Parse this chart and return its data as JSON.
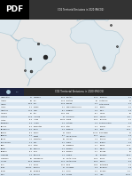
{
  "title": "CO2 Territorial Emissions in 2020 (MtCO2)",
  "map_bg": "#bdd9ea",
  "land_color": "#dde8ee",
  "land_edge": "#aec8d5",
  "header_bg": "#2a2a2a",
  "header_text": "#ffffff",
  "table_bg1": "#d6e4f0",
  "table_bg2": "#eef4f9",
  "pdf_label": "PDF",
  "map_xlim": [
    -100,
    55
  ],
  "map_ylim": [
    -58,
    65
  ],
  "dots": [
    {
      "lon": -47,
      "lat": -15,
      "size": 12,
      "color": "#111111"
    },
    {
      "lon": -64,
      "lat": -34,
      "size": 4,
      "color": "#444444"
    },
    {
      "lon": -65,
      "lat": -17,
      "size": 3,
      "color": "#555555"
    },
    {
      "lon": -55,
      "lat": 4,
      "size": 3,
      "color": "#555555"
    },
    {
      "lon": -71,
      "lat": -33,
      "size": 2,
      "color": "#666666"
    },
    {
      "lon": 22,
      "lat": -30,
      "size": 6,
      "color": "#333333"
    },
    {
      "lon": 37,
      "lat": 0,
      "size": 2,
      "color": "#666666"
    },
    {
      "lon": 30,
      "lat": 30,
      "size": 2,
      "color": "#666666"
    },
    {
      "lon": -5,
      "lat": 50,
      "size": 2,
      "color": "#666666"
    }
  ],
  "table_rows": [
    [
      "Afghanistan",
      "1.4",
      "Indonesia",
      "619.6",
      "Pakistan",
      "214.5",
      "Colombia",
      "88.5"
    ],
    [
      "Albania",
      "4.8",
      "Iran",
      "703.9",
      "Palestine",
      "3.0",
      "Costa Rica",
      "7.4"
    ],
    [
      "Algeria",
      "155.3",
      "Iraq",
      "163.5",
      "Panama",
      "12.2",
      "Cote d'Ivoire",
      "16.2"
    ],
    [
      "Angola",
      "26.4",
      "Ireland",
      "36.1",
      "Papua New Guinea",
      "12.5",
      "Croatia",
      "16.0"
    ],
    [
      "Argentina",
      "172.3",
      "Israel",
      "63.1",
      "Paraguay",
      "12.0",
      "Cuba",
      "23.8"
    ],
    [
      "Armenia",
      "5.5",
      "Italy",
      "318.2",
      "Peru",
      "55.7",
      "Cyprus",
      "5.2"
    ],
    [
      "Australia",
      "393.0",
      "Jamaica",
      "7.3",
      "Philippines",
      "122.4",
      "Czechia",
      "96.3"
    ],
    [
      "Austria",
      "62.5",
      "Japan",
      "1056.9",
      "Poland",
      "303.2",
      "Denmark",
      "31.4"
    ],
    [
      "Azerbaijan",
      "37.3",
      "Jordan",
      "20.2",
      "Portugal",
      "42.3",
      "Dominican Rep.",
      "23.2"
    ],
    [
      "Bahrain",
      "28.3",
      "Kazakhstan",
      "249.0",
      "Qatar",
      "97.2",
      "Ecuador",
      "41.8"
    ],
    [
      "Bangladesh",
      "91.0",
      "Kenya",
      "16.3",
      "Romania",
      "59.6",
      "Egypt",
      "232.3"
    ],
    [
      "Belarus",
      "56.9",
      "Kosovo",
      "7.3",
      "Russia",
      "1577.5",
      "El Salvador",
      "7.2"
    ],
    [
      "Belgium",
      "97.3",
      "Kuwait",
      "84.7",
      "Saudi Arabia",
      "671.4",
      "Estonia",
      "12.5"
    ],
    [
      "Bolivia",
      "20.0",
      "Kyrgyzstan",
      "8.3",
      "Senegal",
      "11.6",
      "Ethiopia",
      "17.0"
    ],
    [
      "Bosnia Herz.",
      "20.3",
      "Laos",
      "16.1",
      "Serbia",
      "40.9",
      "Finland",
      "37.6"
    ],
    [
      "Brazil",
      "462.7",
      "Latvia",
      "7.8",
      "Singapore",
      "46.7",
      "France",
      "293.3"
    ],
    [
      "Brunei",
      "9.9",
      "Lebanon",
      "20.6",
      "Slovakia",
      "28.1",
      "Gabon",
      "5.3"
    ],
    [
      "Bulgaria",
      "38.2",
      "Libya",
      "50.8",
      "Slovenia",
      "12.7",
      "Georgia",
      "9.5"
    ],
    [
      "Cambodia",
      "17.0",
      "Lithuania",
      "11.9",
      "Somalia",
      "3.0",
      "Germany",
      "636.9"
    ],
    [
      "Cameroon",
      "8.9",
      "Luxembourg",
      "9.0",
      "South Africa",
      "435.0",
      "Ghana",
      "22.2"
    ],
    [
      "Canada",
      "532.0",
      "Malaysia",
      "224.2",
      "South Korea",
      "586.5",
      "Greece",
      "52.5"
    ],
    [
      "Chile",
      "78.4",
      "Mexico",
      "374.3",
      "Spain",
      "228.6",
      "Guatemala",
      "17.6"
    ],
    [
      "China",
      "10668.0",
      "Moldova",
      "7.4",
      "Sri Lanka",
      "24.8",
      "Honduras",
      "11.8"
    ],
    [
      "Congo",
      "5.2",
      "Mongolia",
      "31.1",
      "Sudan",
      "20.4",
      "Hungary",
      "41.4"
    ],
    [
      "Cuba",
      "23.8",
      "Morocco",
      "60.5",
      "Sweden",
      "37.4",
      "India",
      "2442.4"
    ]
  ]
}
